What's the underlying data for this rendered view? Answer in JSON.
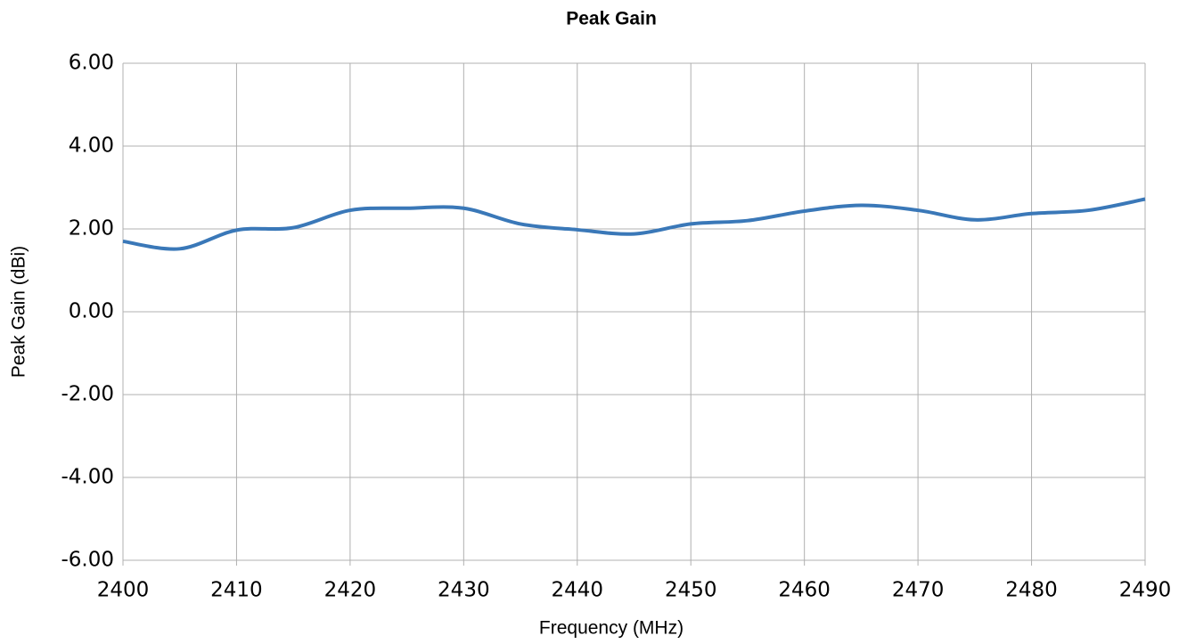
{
  "chart_data": {
    "type": "line",
    "title": "Peak Gain",
    "xlabel": "Frequency (MHz)",
    "ylabel": "Peak Gain (dBi)",
    "x": [
      2400,
      2405,
      2410,
      2415,
      2420,
      2425,
      2430,
      2435,
      2440,
      2445,
      2450,
      2455,
      2460,
      2465,
      2470,
      2475,
      2480,
      2485,
      2490
    ],
    "series": [
      {
        "name": "Peak Gain",
        "color": "#3a78b8",
        "values": [
          1.7,
          1.52,
          1.97,
          2.03,
          2.45,
          2.5,
          2.5,
          2.12,
          1.98,
          1.88,
          2.12,
          2.2,
          2.43,
          2.57,
          2.45,
          2.22,
          2.37,
          2.45,
          2.72
        ]
      }
    ],
    "xlim": [
      2400,
      2490
    ],
    "xticks": [
      2400,
      2410,
      2420,
      2430,
      2440,
      2450,
      2460,
      2470,
      2480,
      2490
    ],
    "ylim": [
      -6,
      6
    ],
    "yticks": [
      {
        "value": -6,
        "label": "-6.00"
      },
      {
        "value": -4,
        "label": "-4.00"
      },
      {
        "value": -2,
        "label": "-2.00"
      },
      {
        "value": 0,
        "label": "0.00"
      },
      {
        "value": 2,
        "label": "2.00"
      },
      {
        "value": 4,
        "label": "4.00"
      },
      {
        "value": 6,
        "label": "6.00"
      }
    ],
    "grid": true
  }
}
